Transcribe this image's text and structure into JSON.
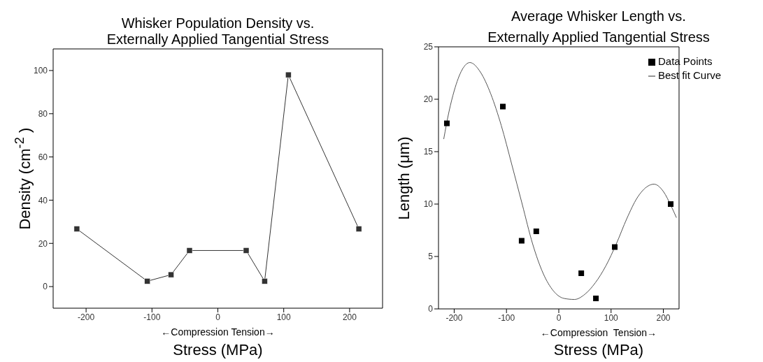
{
  "chart_data": [
    {
      "type": "line",
      "title": "Whisker Population Density vs.\nExternally Applied Tangential Stress",
      "xlabel": "Stress (MPa)",
      "ylabel": "Density (cm$^{-2}$ )",
      "annotations": [
        "←Compression Tension→"
      ],
      "xlim": [
        -250,
        250
      ],
      "xticks": [
        -200,
        -100,
        0,
        100,
        200
      ],
      "ylim": [
        -10,
        110
      ],
      "yticks": [
        0,
        20,
        40,
        60,
        80,
        100
      ],
      "marker": "square",
      "series": [
        {
          "color": "#333333",
          "x": [
            -214,
            -107,
            -71,
            -43,
            43,
            71,
            107,
            214
          ],
          "values": [
            26.7,
            2.5,
            5.5,
            16.7,
            16.7,
            2.5,
            98,
            26.7
          ]
        }
      ]
    },
    {
      "type": "scatter",
      "title": "Average Whisker Length vs.\nExternally Applied Tangential Stress",
      "xlabel": "Stress (MPa)",
      "ylabel": "Length (μm)",
      "annotations": [
        "←Compression  Tension→"
      ],
      "xlim": [
        -230,
        230
      ],
      "xticks": [
        -200,
        -100,
        0,
        100,
        200
      ],
      "ylim": [
        0,
        25
      ],
      "yticks": [
        0,
        5,
        10,
        15,
        20,
        25
      ],
      "legend": "top right",
      "series": [
        {
          "name": "Data Points",
          "marker": "square",
          "color": "#000000",
          "x": [
            -214,
            -107,
            -71,
            -43,
            43,
            71,
            107,
            214
          ],
          "values": [
            17.7,
            19.3,
            6.5,
            7.4,
            3.4,
            1.0,
            5.9,
            10.0
          ]
        },
        {
          "name": "Best fit Curve",
          "type": "line",
          "marker": "none",
          "color": "#555555",
          "x": [
            -220,
            -210,
            -200,
            -185,
            -170,
            -150,
            -130,
            -110,
            -90,
            -70,
            -50,
            -30,
            -10,
            10,
            30,
            50,
            70,
            90,
            110,
            130,
            150,
            170,
            182,
            200,
            215,
            225
          ],
          "values": [
            16.2,
            18.8,
            20.8,
            22.8,
            23.5,
            22.6,
            20.5,
            17.5,
            13.8,
            10,
            6.2,
            3.4,
            1.7,
            1.0,
            0.9,
            1.4,
            2.5,
            4.1,
            6.2,
            8.6,
            10.6,
            11.7,
            11.9,
            11.2,
            9.8,
            8.7
          ]
        }
      ]
    }
  ]
}
